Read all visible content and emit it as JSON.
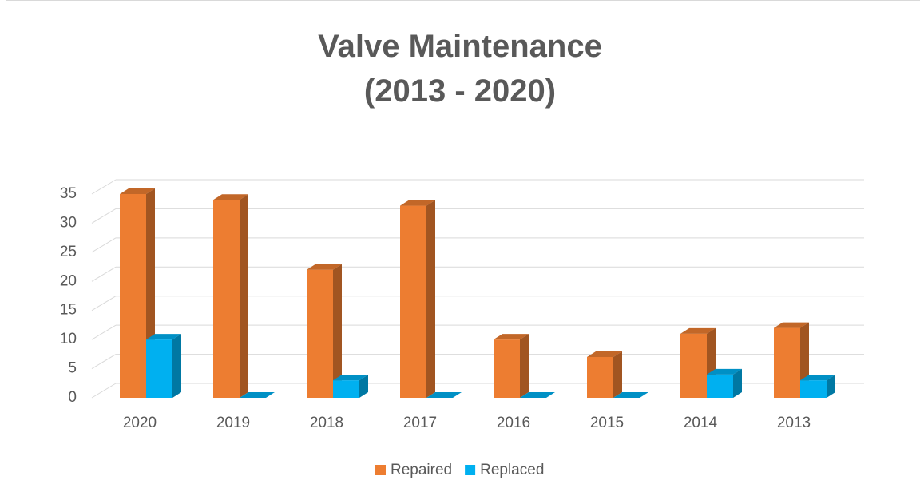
{
  "chart_data": {
    "type": "bar3d",
    "title": "Valve Maintenance (2013 - 2020)",
    "categories": [
      "2020",
      "2019",
      "2018",
      "2017",
      "2016",
      "2015",
      "2014",
      "2013"
    ],
    "series": [
      {
        "name": "Repaired",
        "color": "#ED7D31",
        "values": [
          35,
          34,
          22,
          33,
          10,
          7,
          11,
          12
        ]
      },
      {
        "name": "Replaced",
        "color": "#00B0F0",
        "values": [
          10,
          0,
          3,
          0,
          0,
          0,
          4,
          3
        ]
      }
    ],
    "ylim": [
      0,
      35
    ],
    "yticks": [
      0,
      5,
      10,
      15,
      20,
      25,
      30,
      35
    ],
    "grid": true,
    "legend": "bottom"
  }
}
